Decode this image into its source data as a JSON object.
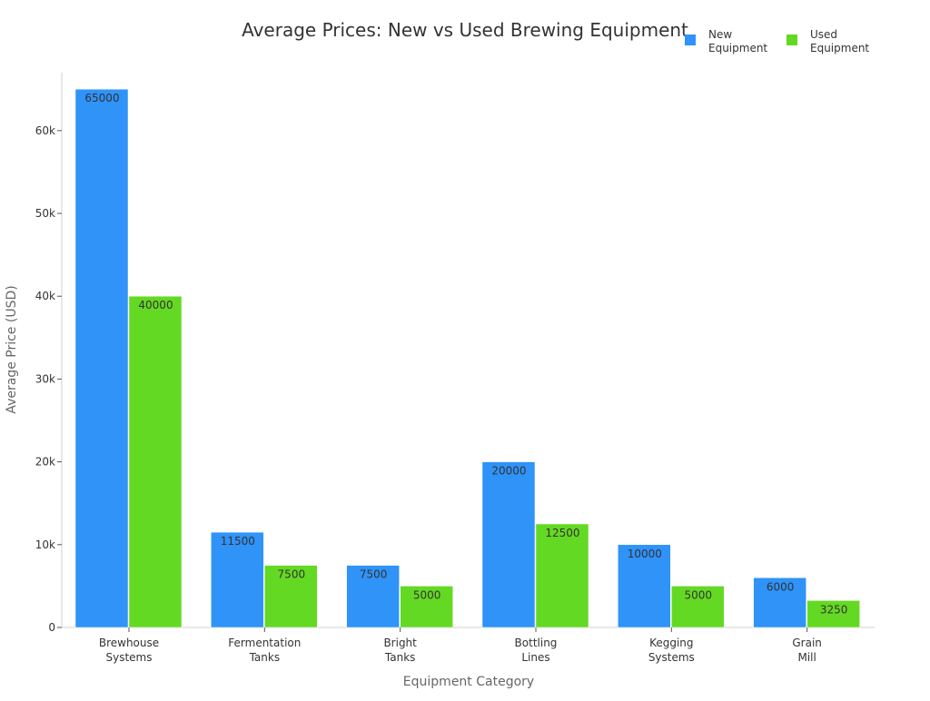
{
  "chart_data": {
    "type": "bar",
    "title": "Average Prices: New vs Used Brewing Equipment",
    "xlabel": "Equipment Category",
    "ylabel": "Average Price (USD)",
    "ylim": [
      0,
      67000
    ],
    "yticks": [
      0,
      10000,
      20000,
      30000,
      40000,
      50000,
      60000
    ],
    "ytick_labels": [
      "0",
      "10k",
      "20k",
      "30k",
      "40k",
      "50k",
      "60k"
    ],
    "grid": false,
    "legend_position": "top-right",
    "categories": [
      [
        "Brewhouse",
        "Systems"
      ],
      [
        "Fermentation",
        "Tanks"
      ],
      [
        "Bright",
        "Tanks"
      ],
      [
        "Bottling",
        "Lines"
      ],
      [
        "Kegging",
        "Systems"
      ],
      [
        "Grain",
        "Mill"
      ]
    ],
    "series": [
      {
        "name": [
          "New",
          "Equipment"
        ],
        "color": "#2f93f8",
        "values": [
          65000,
          11500,
          7500,
          20000,
          10000,
          6000
        ],
        "labels": [
          "65000",
          "11500",
          "7500",
          "20000",
          "10000",
          "6000"
        ]
      },
      {
        "name": [
          "Used",
          "Equipment"
        ],
        "color": "#64d923",
        "values": [
          40000,
          7500,
          5000,
          12500,
          5000,
          3250
        ],
        "labels": [
          "40000",
          "7500",
          "5000",
          "12500",
          "5000",
          "3250"
        ]
      }
    ]
  }
}
